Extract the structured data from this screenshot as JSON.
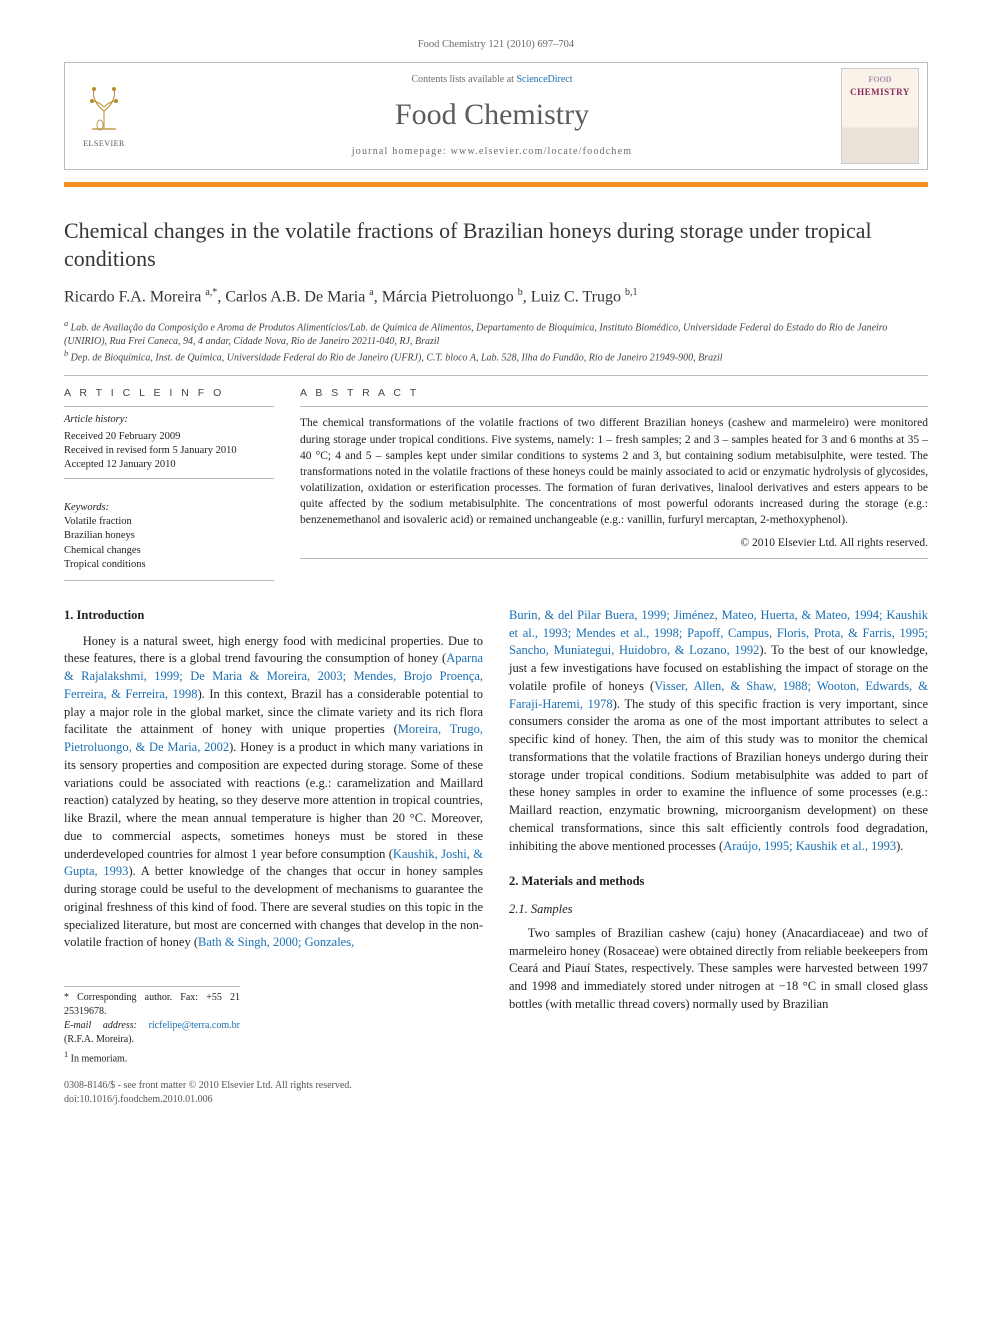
{
  "running_head": "Food Chemistry 121 (2010) 697–704",
  "masthead": {
    "contents_prefix": "Contents lists available at ",
    "contents_link": "ScienceDirect",
    "journal_title": "Food Chemistry",
    "homepage_prefix": "journal homepage: ",
    "homepage_url": "www.elsevier.com/locate/foodchem",
    "publisher_word": "ELSEVIER",
    "cover_line1": "FOOD",
    "cover_line2": "CHEMISTRY"
  },
  "colors": {
    "orange_bar": "#f7901e",
    "link": "#1a6fb3",
    "rule": "#b9b9b9",
    "text_muted": "#6a6a6a",
    "title_gray": "#363636"
  },
  "article": {
    "title": "Chemical changes in the volatile fractions of Brazilian honeys during storage under tropical conditions",
    "authors_html": "Ricardo F.A. Moreira <sup>a,*</sup>, Carlos A.B. De Maria <sup>a</sup>, Márcia Pietroluongo <sup>b</sup>, Luiz C. Trugo <sup>b,1</sup>",
    "affiliations": [
      "a Lab. de Avaliação da Composição e Aroma de Produtos Alimentícios/Lab. de Química de Alimentos, Departamento de Bioquímica, Instituto Biomédico, Universidade Federal do Estado do Rio de Janeiro (UNIRIO), Rua Frei Caneca, 94, 4 andar, Cidade Nova, Rio de Janeiro 20211-040, RJ, Brazil",
      "b Dep. de Bioquímica, Inst. de Química, Universidade Federal do Rio de Janeiro (UFRJ), C.T. bloco A, Lab. 528, Ilha do Fundão, Rio de Janeiro 21949-900, Brazil"
    ]
  },
  "info": {
    "heading": "A R T I C L E   I N F O",
    "history_label": "Article history:",
    "history_lines": [
      "Received 20 February 2009",
      "Received in revised form 5 January 2010",
      "Accepted 12 January 2010"
    ],
    "keywords_label": "Keywords:",
    "keywords": [
      "Volatile fraction",
      "Brazilian honeys",
      "Chemical changes",
      "Tropical conditions"
    ]
  },
  "abstract": {
    "heading": "A B S T R A C T",
    "body": "The chemical transformations of the volatile fractions of two different Brazilian honeys (cashew and marmeleiro) were monitored during storage under tropical conditions. Five systems, namely: 1 – fresh samples; 2 and 3 – samples heated for 3 and 6 months at 35 – 40 °C; 4 and 5 – samples kept under similar conditions to systems 2 and 3, but containing sodium metabisulphite, were tested. The transformations noted in the volatile fractions of these honeys could be mainly associated to acid or enzymatic hydrolysis of glycosides, volatilization, oxidation or esterification processes. The formation of furan derivatives, linalool derivatives and esters appears to be quite affected by the sodium metabisulphite. The concentrations of most powerful odorants increased during the storage (e.g.: benzenemethanol and isovaleric acid) or remained unchangeable (e.g.: vanillin, furfuryl mercaptan, 2-methoxyphenol).",
    "copyright": "© 2010 Elsevier Ltd. All rights reserved."
  },
  "body": {
    "intro_heading": "1. Introduction",
    "intro_p1_a": "Honey is a natural sweet, high energy food with medicinal properties. Due to these features, there is a global trend favouring the consumption of honey (",
    "intro_p1_ref1": "Aparna & Rajalakshmi, 1999; De Maria & Moreira, 2003; Mendes, Brojo Proença, Ferreira, & Ferreira, 1998",
    "intro_p1_b": "). In this context, Brazil has a considerable potential to play a major role in the global market, since the climate variety and its rich flora facilitate the attainment of honey with unique properties (",
    "intro_p1_ref2": "Moreira, Trugo, Pietroluongo, & De Maria, 2002",
    "intro_p1_c": "). Honey is a product in which many variations in its sensory properties and composition are expected during storage. Some of these variations could be associated with reactions (e.g.: caramelization and Maillard reaction) catalyzed by heating, so they deserve more attention in tropical countries, like Brazil, where the mean annual temperature is higher than 20 °C. Moreover, due to commercial aspects, sometimes honeys must be stored in these underdeveloped countries for almost 1 year before consumption (",
    "intro_p1_ref3": "Kaushik, Joshi, & Gupta, 1993",
    "intro_p1_d": "). A better knowledge of the changes that occur in honey samples during storage could be useful to the development of mechanisms to guarantee the original freshness of this kind of food. There are several studies on this topic in the specialized literature, but most are concerned with changes that develop in the non-volatile fraction of honey (",
    "intro_p1_ref4": "Bath & Singh, 2000; Gonzales,",
    "right_top_ref": "Burin, & del Pilar Buera, 1999; Jiménez, Mateo, Huerta, & Mateo, 1994; Kaushik et al., 1993; Mendes et al., 1998; Papoff, Campus, Floris, Prota, & Farris, 1995; Sancho, Muniategui, Huidobro, & Lozano, 1992",
    "right_p1_a": "). To the best of our knowledge, just a few investigations have focused on establishing the impact of storage on the volatile profile of honeys (",
    "right_p1_ref1": "Visser, Allen, & Shaw, 1988; Wooton, Edwards, & Faraji-Haremi, 1978",
    "right_p1_b": "). The study of this specific fraction is very important, since consumers consider the aroma as one of the most important attributes to select a specific kind of honey. Then, the aim of this study was to monitor the chemical transformations that the volatile fractions of Brazilian honeys undergo during their storage under tropical conditions. Sodium metabisulphite was added to part of these honey samples in order to examine the influence of some processes (e.g.: Maillard reaction, enzymatic browning, microorganism development) on these chemical transformations, since this salt efficiently controls food degradation, inhibiting the above mentioned processes (",
    "right_p1_ref2": "Araújo, 1995; Kaushik et al., 1993",
    "right_p1_c": ").",
    "mm_heading": "2. Materials and methods",
    "samples_heading": "2.1. Samples",
    "samples_p": "Two samples of Brazilian cashew (caju) honey (Anacardiaceae) and two of marmeleiro honey (Rosaceae) were obtained directly from reliable beekeepers from Ceará and Piauí States, respectively. These samples were harvested between 1997 and 1998 and immediately stored under nitrogen at −18 °C in small closed glass bottles (with metallic thread covers) normally used by Brazilian"
  },
  "footnotes": {
    "corr": "* Corresponding author. Fax: +55 21 25319678.",
    "email_label": "E-mail address: ",
    "email": "ricfelipe@terra.com.br",
    "email_tail": " (R.F.A. Moreira).",
    "note1": "1  In memoriam."
  },
  "footer": {
    "front_matter": "0308-8146/$ - see front matter © 2010 Elsevier Ltd. All rights reserved.",
    "doi": "doi:10.1016/j.foodchem.2010.01.006"
  }
}
